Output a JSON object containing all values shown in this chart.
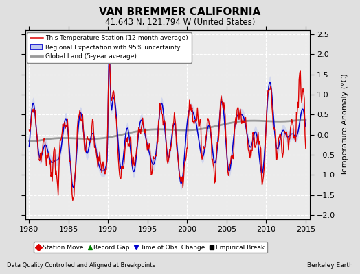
{
  "title": "VAN BREMMER CALIFORNIA",
  "subtitle": "41.643 N, 121.794 W (United States)",
  "xlabel_left": "Data Quality Controlled and Aligned at Breakpoints",
  "xlabel_right": "Berkeley Earth",
  "ylabel": "Temperature Anomaly (°C)",
  "xlim": [
    1979.5,
    2015.5
  ],
  "ylim": [
    -2.1,
    2.6
  ],
  "yticks": [
    -2,
    -1.5,
    -1,
    -0.5,
    0,
    0.5,
    1,
    1.5,
    2,
    2.5
  ],
  "xticks": [
    1980,
    1985,
    1990,
    1995,
    2000,
    2005,
    2010,
    2015
  ],
  "bg_color": "#e0e0e0",
  "plot_bg_color": "#ebebeb",
  "grid_color": "white",
  "red_color": "#dd0000",
  "blue_color": "#0000cc",
  "blue_fill_color": "#c0c8f0",
  "gray_color": "#999999",
  "legend_line_labels": [
    "This Temperature Station (12-month average)",
    "Regional Expectation with 95% uncertainty",
    "Global Land (5-year average)"
  ],
  "marker_items": [
    {
      "label": "Station Move",
      "color": "#dd0000",
      "marker": "D"
    },
    {
      "label": "Record Gap",
      "color": "green",
      "marker": "^"
    },
    {
      "label": "Time of Obs. Change",
      "color": "#0000cc",
      "marker": "v"
    },
    {
      "label": "Empirical Break",
      "color": "black",
      "marker": "s"
    }
  ]
}
